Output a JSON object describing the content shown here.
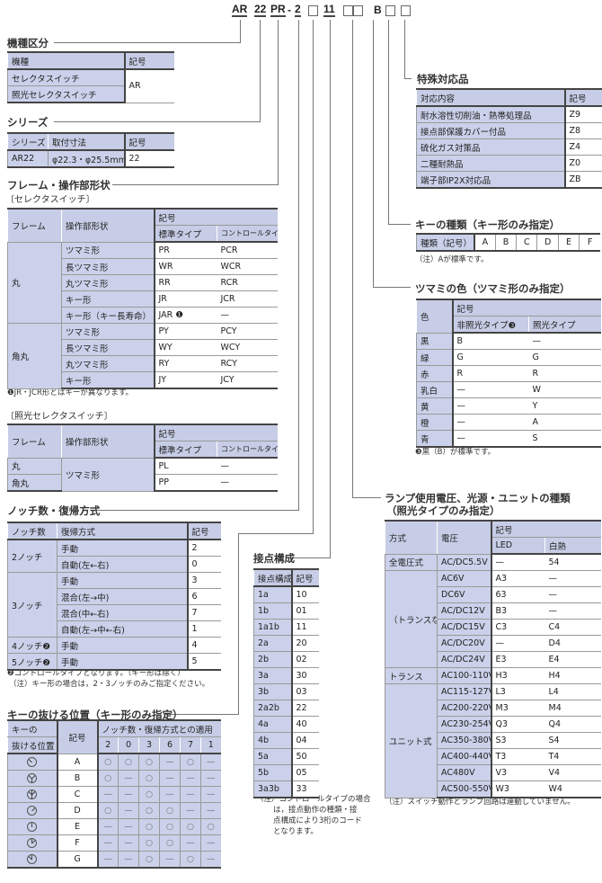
{
  "model_code": {
    "ar": "AR",
    "series": "22",
    "frame": "PR",
    "dash": "-",
    "notch": "2",
    "contact": "11",
    "color": "B"
  },
  "model_type": {
    "title": "機種区分",
    "headers": [
      "機種",
      "記号"
    ],
    "rows": [
      [
        "セレクタスイッチ",
        "AR"
      ],
      [
        "照光セレクタスイッチ",
        null
      ]
    ]
  },
  "series": {
    "title": "シリーズ",
    "headers": [
      "シリーズ",
      "取付寸法",
      "記号"
    ],
    "rows": [
      [
        "AR22",
        "φ22.3・φ25.5mm共用",
        "22"
      ]
    ]
  },
  "frame": {
    "title": "フレーム・操作部形状",
    "selector_label": "〔セレクタスイッチ〕",
    "headers": [
      "フレーム",
      "操作部形状",
      {
        "label": "記号",
        "sub": [
          "標準タイプ",
          "コントロールタイプ"
        ]
      }
    ],
    "rows": [
      [
        "丸",
        "ツマミ形",
        "PR",
        "PCR"
      ],
      [
        null,
        "長ツマミ形",
        "WR",
        "WCR"
      ],
      [
        null,
        "丸ツマミ形",
        "RR",
        "RCR"
      ],
      [
        null,
        "キー形",
        "JR",
        "JCR"
      ],
      [
        null,
        "キー形（キー長寿命）",
        "JAR ❶",
        "—"
      ],
      [
        "角丸",
        "ツマミ形",
        "PY",
        "PCY"
      ],
      [
        null,
        "長ツマミ形",
        "WY",
        "WCY"
      ],
      [
        null,
        "丸ツマミ形",
        "RY",
        "RCY"
      ],
      [
        null,
        "キー形",
        "JY",
        "JCY"
      ]
    ],
    "note": "❶JR・JCR形とはキーが異なります。",
    "illuminated_label": "〔照光セレクタスイッチ〕",
    "illuminated_headers": [
      "フレーム",
      "操作部形状",
      {
        "label": "記号",
        "sub": [
          "標準タイプ",
          "コントロールタイプ"
        ]
      }
    ],
    "illuminated_rows": [
      [
        "丸",
        "ツマミ形",
        "PL",
        "—"
      ],
      [
        "角丸",
        null,
        "PP",
        "—"
      ]
    ]
  },
  "notch": {
    "title": "ノッチ数・復帰方式",
    "headers": [
      "ノッチ数",
      "復帰方式",
      "記号"
    ],
    "rows": [
      [
        "2ノッチ",
        "手動",
        "2"
      ],
      [
        null,
        "自動(左←右)",
        "0"
      ],
      [
        "3ノッチ",
        "手動",
        "3"
      ],
      [
        null,
        "混合(左→中)",
        "6"
      ],
      [
        null,
        "混合(中←右)",
        "7"
      ],
      [
        null,
        "自動(左→中←右)",
        "1"
      ],
      [
        "4ノッチ❷",
        "手動",
        "4"
      ],
      [
        "5ノッチ❷",
        "手動",
        "5"
      ]
    ],
    "notes": [
      "❷コントロールタイプとなります。（キー形は除く）",
      "（注）キー形の場合は，2・3ノッチのみご指定ください。"
    ]
  },
  "key_position": {
    "title": "キーの抜ける位置（キー形のみ指定）",
    "headers": [
      "キーの",
      "記号",
      "ノッチ数・復帰方式との適用"
    ],
    "headers2": [
      "抜ける位置",
      "",
      "2",
      "0",
      "3",
      "6",
      "7",
      "1"
    ],
    "rows": [
      {
        "icon": "key-position-a-icon",
        "code": "A",
        "marks": [
          "○",
          "○",
          "○",
          "—",
          "○",
          "—"
        ]
      },
      {
        "icon": "key-position-b-icon",
        "code": "B",
        "marks": [
          "○",
          "—",
          "○",
          "—",
          "—",
          "—"
        ]
      },
      {
        "icon": "key-position-c-icon",
        "code": "C",
        "marks": [
          "—",
          "—",
          "○",
          "—",
          "—",
          "—"
        ]
      },
      {
        "icon": "key-position-d-icon",
        "code": "D",
        "marks": [
          "○",
          "—",
          "○",
          "○",
          "—",
          "—"
        ]
      },
      {
        "icon": "key-position-e-icon",
        "code": "E",
        "marks": [
          "—",
          "—",
          "○",
          "○",
          "○",
          "○"
        ]
      },
      {
        "icon": "key-position-f-icon",
        "code": "F",
        "marks": [
          "—",
          "—",
          "○",
          "○",
          "—",
          "—"
        ]
      },
      {
        "icon": "key-position-g-icon",
        "code": "G",
        "marks": [
          "—",
          "—",
          "○",
          "—",
          "○",
          "—"
        ]
      }
    ]
  },
  "contact": {
    "title": "接点構成",
    "headers": [
      "接点構成",
      "記号"
    ],
    "rows": [
      [
        "1a",
        "10"
      ],
      [
        "1b",
        "01"
      ],
      [
        "1a1b",
        "11"
      ],
      [
        "2a",
        "20"
      ],
      [
        "2b",
        "02"
      ],
      [
        "3a",
        "30"
      ],
      [
        "3b",
        "03"
      ],
      [
        "2a2b",
        "22"
      ],
      [
        "4a",
        "40"
      ],
      [
        "4b",
        "04"
      ],
      [
        "5a",
        "50"
      ],
      [
        "5b",
        "05"
      ],
      [
        "3a3b",
        "33"
      ]
    ],
    "notes": [
      "（注）コントロールタイプの場合",
      "は，接点動作の種類・接",
      "点構成により3桁のコード",
      "となります。"
    ]
  },
  "special": {
    "title": "特殊対応品",
    "headers": [
      "対応内容",
      "記号"
    ],
    "rows": [
      [
        "耐水溶性切削油・熱帯処理品",
        "Z9"
      ],
      [
        "接点部保護カバー付品",
        "Z8"
      ],
      [
        "硫化ガス対策品",
        "Z4"
      ],
      [
        "二種耐熱品",
        "Z0"
      ],
      [
        "端子部IP2X対応品",
        "ZB"
      ]
    ]
  },
  "key_type": {
    "title": "キーの種類（キー形のみ指定）",
    "header": "種類（記号）",
    "values": [
      "A",
      "B",
      "C",
      "D",
      "E",
      "F"
    ],
    "note": "（注）Aが標準です。"
  },
  "knob_color": {
    "title": "ツマミの色（ツマミ形のみ指定）",
    "headers": [
      "色",
      {
        "label": "記号",
        "sub": [
          "非照光タイプ❸",
          "照光タイプ"
        ]
      }
    ],
    "rows": [
      [
        "黒",
        "B",
        "—"
      ],
      [
        "緑",
        "G",
        "G"
      ],
      [
        "赤",
        "R",
        "R"
      ],
      [
        "乳白",
        "—",
        "W"
      ],
      [
        "黄",
        "—",
        "Y"
      ],
      [
        "橙",
        "—",
        "A"
      ],
      [
        "青",
        "—",
        "S"
      ]
    ],
    "note": "❸黒（B）が標準です。"
  },
  "lamp": {
    "title": "ランプ使用電圧、光源・ユニットの種類",
    "subtitle": "（照光タイプのみ指定）",
    "headers": [
      "方式",
      "電圧",
      {
        "label": "記号",
        "sub": [
          "LED",
          "白熱"
        ]
      }
    ],
    "rows": [
      [
        "全電圧式",
        "AC/DC5.5V",
        "—",
        "54"
      ],
      [
        "（トランスなし）",
        "AC6V",
        "A3",
        "—"
      ],
      [
        null,
        "DC6V",
        "63",
        "—"
      ],
      [
        null,
        "AC/DC12V",
        "B3",
        "—"
      ],
      [
        null,
        "AC/DC15V",
        "C3",
        "C4"
      ],
      [
        null,
        "AC/DC20V",
        "—",
        "D4"
      ],
      [
        null,
        "AC/DC24V",
        "E3",
        "E4"
      ],
      [
        "トランス",
        "AC100-110V",
        "H3",
        "H4"
      ],
      [
        "ユニット式",
        "AC115-127V",
        "L3",
        "L4"
      ],
      [
        null,
        "AC200-220V",
        "M3",
        "M4"
      ],
      [
        null,
        "AC230-254V",
        "Q3",
        "Q4"
      ],
      [
        null,
        "AC350-380V",
        "S3",
        "S4"
      ],
      [
        null,
        "AC400-440V",
        "T3",
        "T4"
      ],
      [
        null,
        "AC480V",
        "V3",
        "V4"
      ],
      [
        null,
        "AC500-550V",
        "W3",
        "W4"
      ]
    ],
    "note": "（注）スイッチ動作とランプ回路は連動していません。"
  },
  "colors": {
    "header_bg": "#c7cde6",
    "shaded_bg": "#cbd1ea",
    "rule": "#444444"
  }
}
